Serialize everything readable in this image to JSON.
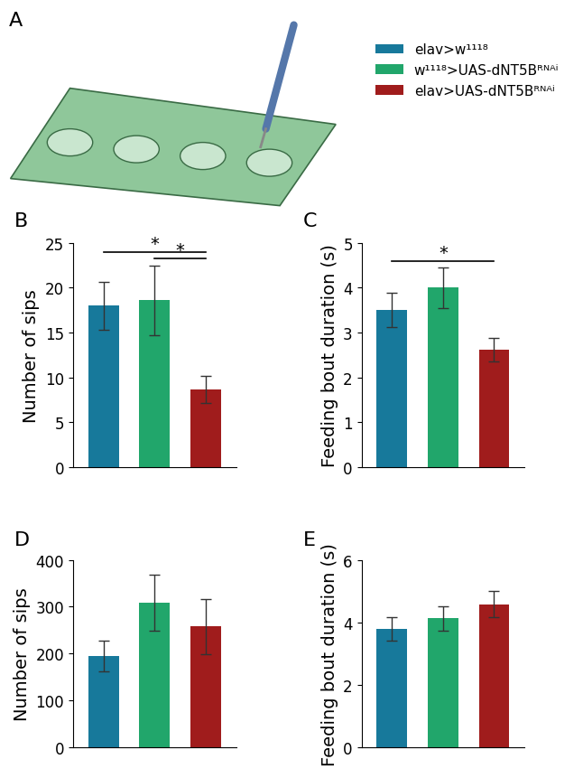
{
  "illustration": {
    "label": "A"
  },
  "chart_data": [
    {
      "type": "bar",
      "title": "B",
      "ylabel": "Number of sips",
      "ylim": [
        0,
        25
      ],
      "yticks": [
        0,
        5,
        10,
        15,
        20,
        25
      ],
      "tick_labels": "y",
      "legend": "upper right",
      "series": [
        {
          "name": "elav>w¹¹¹⁸",
          "color": "#17799b",
          "values": [
            18.0
          ],
          "errors": [
            2.7
          ]
        },
        {
          "name": "w¹¹¹⁸>UAS-dNT5Bᴿᴺᴬⁱ",
          "color": "#21a66b",
          "values": [
            18.6
          ],
          "errors": [
            3.9
          ]
        },
        {
          "name": "elav>UAS-dNT5Bᴿᴺᴬⁱ",
          "color": "#a01c1c",
          "values": [
            8.7
          ],
          "errors": [
            1.5
          ]
        }
      ],
      "annotations": [
        {
          "pair": [
            0,
            2
          ],
          "text": "*"
        },
        {
          "pair": [
            1,
            2
          ],
          "text": "*"
        }
      ]
    },
    {
      "type": "bar",
      "title": "C",
      "ylabel": "Feeding bout duration (s)",
      "ylim": [
        0,
        5
      ],
      "yticks": [
        0,
        1,
        2,
        3,
        4,
        5
      ],
      "tick_labels": "y",
      "series": [
        {
          "name": "elav>w¹¹¹⁸",
          "color": "#17799b",
          "values": [
            3.5
          ],
          "errors": [
            0.38
          ]
        },
        {
          "name": "w¹¹¹⁸>UAS-dNT5Bᴿᴺᴬⁱ",
          "color": "#21a66b",
          "values": [
            4.0
          ],
          "errors": [
            0.45
          ]
        },
        {
          "name": "elav>UAS-dNT5Bᴿᴺᴬⁱ",
          "color": "#a01c1c",
          "values": [
            2.62
          ],
          "errors": [
            0.26
          ]
        }
      ],
      "annotations": [
        {
          "pair": [
            0,
            2
          ],
          "text": "*"
        }
      ]
    },
    {
      "type": "bar",
      "title": "D",
      "ylabel": "Number of sips",
      "ylim": [
        0,
        400
      ],
      "yticks": [
        0,
        100,
        200,
        300,
        400
      ],
      "tick_labels": "y",
      "series": [
        {
          "name": "elav>w¹¹¹⁸",
          "color": "#17799b",
          "values": [
            195
          ],
          "errors": [
            33
          ]
        },
        {
          "name": "w¹¹¹⁸>UAS-dNT5Bᴿᴺᴬⁱ",
          "color": "#21a66b",
          "values": [
            308
          ],
          "errors": [
            60
          ]
        },
        {
          "name": "elav>UAS-dNT5Bᴿᴺᴬⁱ",
          "color": "#a01c1c",
          "values": [
            258
          ],
          "errors": [
            59
          ]
        }
      ]
    },
    {
      "type": "bar",
      "title": "E",
      "ylabel": "Feeding bout duration (s)",
      "ylim": [
        0,
        6
      ],
      "yticks": [
        0,
        2,
        4,
        6
      ],
      "tick_labels": "y",
      "series": [
        {
          "name": "elav>w¹¹¹⁸",
          "color": "#17799b",
          "values": [
            3.78
          ],
          "errors": [
            0.37
          ]
        },
        {
          "name": "w¹¹¹⁸>UAS-dNT5Bᴿᴺᴬⁱ",
          "color": "#21a66b",
          "values": [
            4.12
          ],
          "errors": [
            0.38
          ]
        },
        {
          "name": "elav>UAS-dNT5Bᴿᴺᴬⁱ",
          "color": "#a01c1c",
          "values": [
            4.58
          ],
          "errors": [
            0.43
          ]
        }
      ]
    }
  ]
}
